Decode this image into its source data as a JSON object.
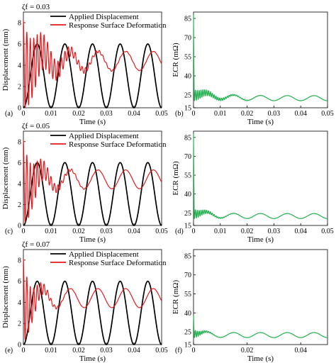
{
  "chart_data": [
    {
      "type": "line",
      "panel_label": "(a)",
      "damping_label": "ζf = 0.03",
      "xlabel": "Time (s)",
      "ylabel": "Displacement (mm)",
      "xlim": [
        0,
        0.05
      ],
      "ylim": [
        0,
        9
      ],
      "xticks": [
        "0",
        "0.01",
        "0.02",
        "0.03",
        "0.04",
        "0.05"
      ],
      "yticks": [
        "0",
        "2",
        "4",
        "6",
        "8"
      ],
      "legend_position": "top",
      "series": [
        {
          "name": "Applied Displacement",
          "color": "#000000",
          "model": {
            "kind": "cosine",
            "offset": 3,
            "amplitude": 3,
            "period": 0.01,
            "start": "min"
          }
        },
        {
          "name": "Response Surface Deformation",
          "color": "#e8191c",
          "model": {
            "kind": "damped",
            "mean": 4.4,
            "steady_amplitude": 0.9,
            "period": 0.01,
            "lag": 0.002,
            "transient_amplitude": 4.1,
            "transient_period": 0.00125,
            "decay_time": 0.008
          }
        }
      ]
    },
    {
      "type": "line",
      "panel_label": "(b)",
      "xlabel": "Time (s)",
      "ylabel": "ECR (mΩ)",
      "xlim": [
        0,
        0.05
      ],
      "ylim": [
        15,
        90
      ],
      "xticks": [
        "0",
        "0.01",
        "0.02",
        "0.03",
        "0.04",
        "0.05"
      ],
      "yticks": [
        "15",
        "25",
        "40",
        "55",
        "70",
        "85"
      ],
      "series": [
        {
          "name": "",
          "color": "#22b04e",
          "model": {
            "kind": "ecr",
            "initial_peak": 88,
            "mean": 22.5,
            "steady_amplitude": 2.0,
            "period": 0.01,
            "transient_amplitude": 9,
            "transient_period": 0.0007,
            "decay_time": 0.007
          }
        }
      ]
    },
    {
      "type": "line",
      "panel_label": "(c)",
      "damping_label": "ζf = 0.05",
      "xlabel": "Time (s)",
      "ylabel": "Displacement (mm)",
      "xlim": [
        0,
        0.05
      ],
      "ylim": [
        0,
        9
      ],
      "xticks": [
        "0",
        "0.01",
        "0.02",
        "0.03",
        "0.04",
        "0.05"
      ],
      "yticks": [
        "0",
        "2",
        "4",
        "6",
        "8"
      ],
      "legend_position": "top",
      "series": [
        {
          "name": "Applied Displacement",
          "color": "#000000",
          "model": {
            "kind": "cosine",
            "offset": 3,
            "amplitude": 3,
            "period": 0.01,
            "start": "min"
          }
        },
        {
          "name": "Response Surface Deformation",
          "color": "#e8191c",
          "model": {
            "kind": "damped",
            "mean": 4.4,
            "steady_amplitude": 0.9,
            "period": 0.01,
            "lag": 0.002,
            "transient_amplitude": 4.0,
            "transient_period": 0.00125,
            "decay_time": 0.005
          }
        }
      ]
    },
    {
      "type": "line",
      "panel_label": "(d)",
      "xlabel": "Time (s)",
      "ylabel": "ECR (mΩ)",
      "xlim": [
        0,
        0.05
      ],
      "ylim": [
        15,
        90
      ],
      "xticks": [
        "0",
        "0.01",
        "0.02",
        "0.03",
        "0.04",
        "0.05"
      ],
      "yticks": [
        "15",
        "25",
        "40",
        "55",
        "70",
        "85"
      ],
      "series": [
        {
          "name": "",
          "color": "#22b04e",
          "model": {
            "kind": "ecr",
            "initial_peak": 88,
            "mean": 22.5,
            "steady_amplitude": 2.0,
            "period": 0.01,
            "transient_amplitude": 8,
            "transient_period": 0.0007,
            "decay_time": 0.0045
          }
        }
      ]
    },
    {
      "type": "line",
      "panel_label": "(e)",
      "damping_label": "ζf = 0.07",
      "xlabel": "Time (s)",
      "ylabel": "Displacement (mm)",
      "xlim": [
        0,
        0.05
      ],
      "ylim": [
        0,
        9
      ],
      "xticks": [
        "0",
        "0.01",
        "0.02",
        "0.03",
        "0.04",
        "0.05"
      ],
      "yticks": [
        "0",
        "2",
        "4",
        "6",
        "8"
      ],
      "legend_position": "top",
      "series": [
        {
          "name": "Applied Displacement",
          "color": "#000000",
          "model": {
            "kind": "cosine",
            "offset": 3,
            "amplitude": 3,
            "period": 0.01,
            "start": "min"
          }
        },
        {
          "name": "Response Surface Deformation",
          "color": "#e8191c",
          "model": {
            "kind": "damped",
            "mean": 4.4,
            "steady_amplitude": 0.9,
            "period": 0.01,
            "lag": 0.002,
            "transient_amplitude": 4.0,
            "transient_period": 0.00125,
            "decay_time": 0.0035
          }
        }
      ]
    },
    {
      "type": "line",
      "panel_label": "(f)",
      "xlabel": "Time (s)",
      "ylabel": "ECR (mΩ)",
      "xlim": [
        0,
        0.05
      ],
      "ylim": [
        15,
        90
      ],
      "xticks": [
        "0",
        "0.02",
        "0.04"
      ],
      "xtick_values": [
        0,
        0.02,
        0.04
      ],
      "yticks": [
        "15",
        "25",
        "40",
        "55",
        "70",
        "85"
      ],
      "series": [
        {
          "name": "",
          "color": "#22b04e",
          "model": {
            "kind": "ecr",
            "initial_peak": 38,
            "mean": 22.5,
            "steady_amplitude": 2.0,
            "period": 0.01,
            "transient_amplitude": 7,
            "transient_period": 0.0007,
            "decay_time": 0.003
          }
        }
      ]
    }
  ]
}
